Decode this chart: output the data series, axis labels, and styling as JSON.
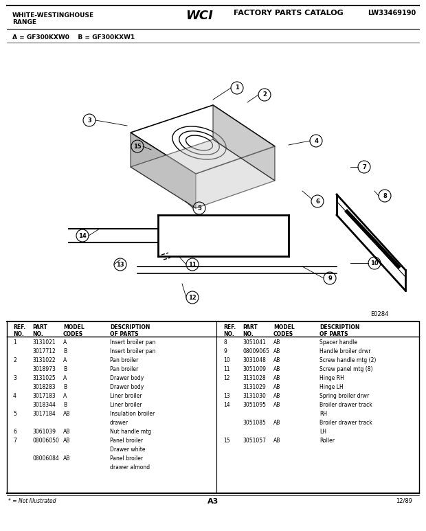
{
  "title_left": "WHITE-WESTINGHOUSE\nRANGE",
  "title_center": "WCI FACTORY PARTS CATALOG",
  "title_right": "LW33469190",
  "model_line": "A = GF300KXW0    B = GF300KXW1",
  "diagram_label": "E0284",
  "footer_note": "* = Not Illustrated",
  "footer_center": "A3",
  "footer_right": "12/89",
  "bg_color": "#ffffff",
  "table_header": [
    "REF.\nNO.",
    "PART\nNO.",
    "MODEL\nCODES",
    "DESCRIPTION\nOF PARTS"
  ],
  "left_rows": [
    [
      "1",
      "3131021\n3017712",
      "A\nB",
      "Insert broiler pan\nInsert broiler pan"
    ],
    [
      "2",
      "3131022\n3018973",
      "A\nB",
      "Pan broiler\nPan broiler"
    ],
    [
      "3",
      "3131025\n3018283",
      "A\nB",
      "Drawer body\nDrawer body"
    ],
    [
      "4",
      "3017183\n3018344",
      "A\nB",
      "Liner broiler\nLiner broiler"
    ],
    [
      "5",
      "3017184",
      "AB",
      "Insulation broiler\ndrawer"
    ],
    [
      "6",
      "3061039",
      "AB",
      "Nut handle mtg"
    ],
    [
      "7",
      "08006050",
      "AB",
      "Panel broiler\nDrawer white\n"
    ],
    [
      "",
      "08006084",
      "AB",
      "Panel broiler\ndrawer almond"
    ]
  ],
  "right_rows": [
    [
      "8",
      "3051041",
      "AB",
      "Spacer handle"
    ],
    [
      "9",
      "08009065",
      "AB",
      "Handle broiler drwr"
    ],
    [
      "10",
      "3031048",
      "AB",
      "Screw handle mtg (2)"
    ],
    [
      "11",
      "3051009",
      "AB",
      "Screw panel mtg (8)"
    ],
    [
      "12",
      "3131028\n3131029",
      "AB\nAB",
      "Hinge RH\nHinge LH"
    ],
    [
      "13",
      "3131030",
      "AB",
      "Spring broiler drwr"
    ],
    [
      "14",
      "3051095",
      "AB",
      "Broiler drawer track\nRH"
    ],
    [
      "",
      "3051085",
      "AB",
      "Broiler drawer track\nLH"
    ],
    [
      "15",
      "3051057",
      "AB",
      "Roller"
    ]
  ]
}
